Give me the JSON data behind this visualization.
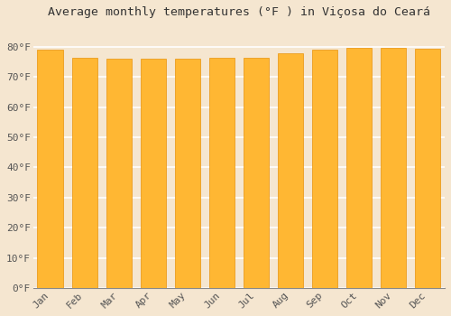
{
  "title": "Average monthly temperatures (°F ) in Viçosa do Ceará",
  "months": [
    "Jan",
    "Feb",
    "Mar",
    "Apr",
    "May",
    "Jun",
    "Jul",
    "Aug",
    "Sep",
    "Oct",
    "Nov",
    "Dec"
  ],
  "values": [
    79.0,
    76.5,
    76.0,
    76.2,
    76.0,
    76.3,
    76.5,
    78.0,
    79.2,
    79.7,
    79.7,
    79.5
  ],
  "bar_color": "#FFB733",
  "bar_edge_color": "#E8930A",
  "background_color": "#f5e6d0",
  "plot_bg_color": "#f5e6d0",
  "ylim": [
    0,
    88
  ],
  "yticks": [
    0,
    10,
    20,
    30,
    40,
    50,
    60,
    70,
    80
  ],
  "yticklabels": [
    "0°F",
    "10°F",
    "20°F",
    "30°F",
    "40°F",
    "50°F",
    "60°F",
    "70°F",
    "80°F"
  ],
  "title_fontsize": 9.5,
  "tick_fontsize": 8,
  "grid_color": "#ffffff",
  "font_family": "monospace",
  "bar_width": 0.75
}
